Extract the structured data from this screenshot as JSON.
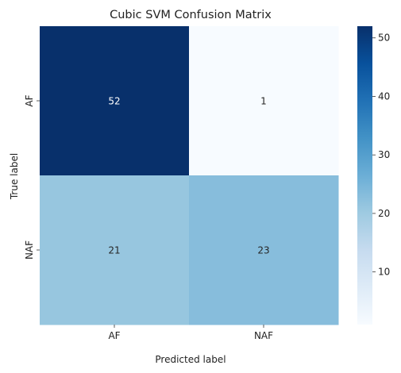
{
  "chart_data": {
    "type": "heatmap",
    "title": "Cubic SVM Confusion Matrix",
    "xlabel": "Predicted label",
    "ylabel": "True label",
    "x_categories": [
      "AF",
      "NAF"
    ],
    "y_categories": [
      "AF",
      "NAF"
    ],
    "values": [
      [
        52,
        1
      ],
      [
        21,
        23
      ]
    ],
    "colormap": "Blues",
    "colorbar": {
      "range": [
        1,
        52
      ],
      "ticks": [
        "10",
        "20",
        "30",
        "40",
        "50"
      ]
    },
    "grid": false
  }
}
